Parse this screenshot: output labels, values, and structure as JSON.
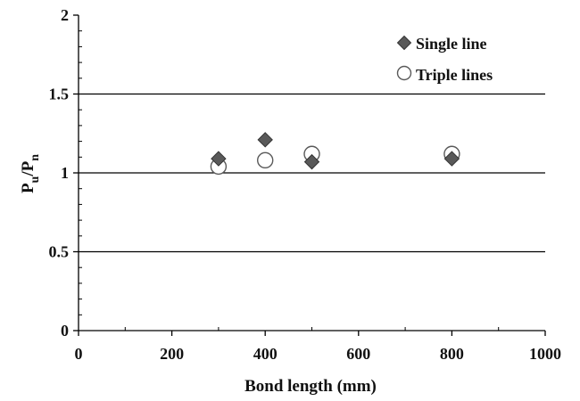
{
  "chart_data": {
    "type": "scatter",
    "xlabel": "Bond length (mm)",
    "ylabel": {
      "main": "P",
      "sub_u": "u",
      "slash": "/",
      "main2": "P",
      "sub_n": "n"
    },
    "xlim": [
      0,
      1000
    ],
    "ylim": [
      0,
      2
    ],
    "xticks": [
      "0",
      "200",
      "400",
      "600",
      "800",
      "1000"
    ],
    "yticks": [
      "0",
      "0.5",
      "1",
      "1.5",
      "2"
    ],
    "xtick_values": [
      0,
      200,
      400,
      600,
      800,
      1000
    ],
    "ytick_values": [
      0,
      0.5,
      1,
      1.5,
      2
    ],
    "grid": "horizontal major lines at 0.5, 1, 1.5",
    "legend_position": "top-right",
    "series": [
      {
        "name": "Single line",
        "marker": "diamond",
        "color": "#595959",
        "points": [
          {
            "x": 300,
            "y": 1.09
          },
          {
            "x": 400,
            "y": 1.21
          },
          {
            "x": 500,
            "y": 1.07
          },
          {
            "x": 800,
            "y": 1.09
          }
        ]
      },
      {
        "name": "Triple lines",
        "marker": "open-circle",
        "color": "#595959",
        "points": [
          {
            "x": 300,
            "y": 1.04
          },
          {
            "x": 400,
            "y": 1.08
          },
          {
            "x": 500,
            "y": 1.12
          },
          {
            "x": 800,
            "y": 1.12
          }
        ]
      }
    ]
  }
}
